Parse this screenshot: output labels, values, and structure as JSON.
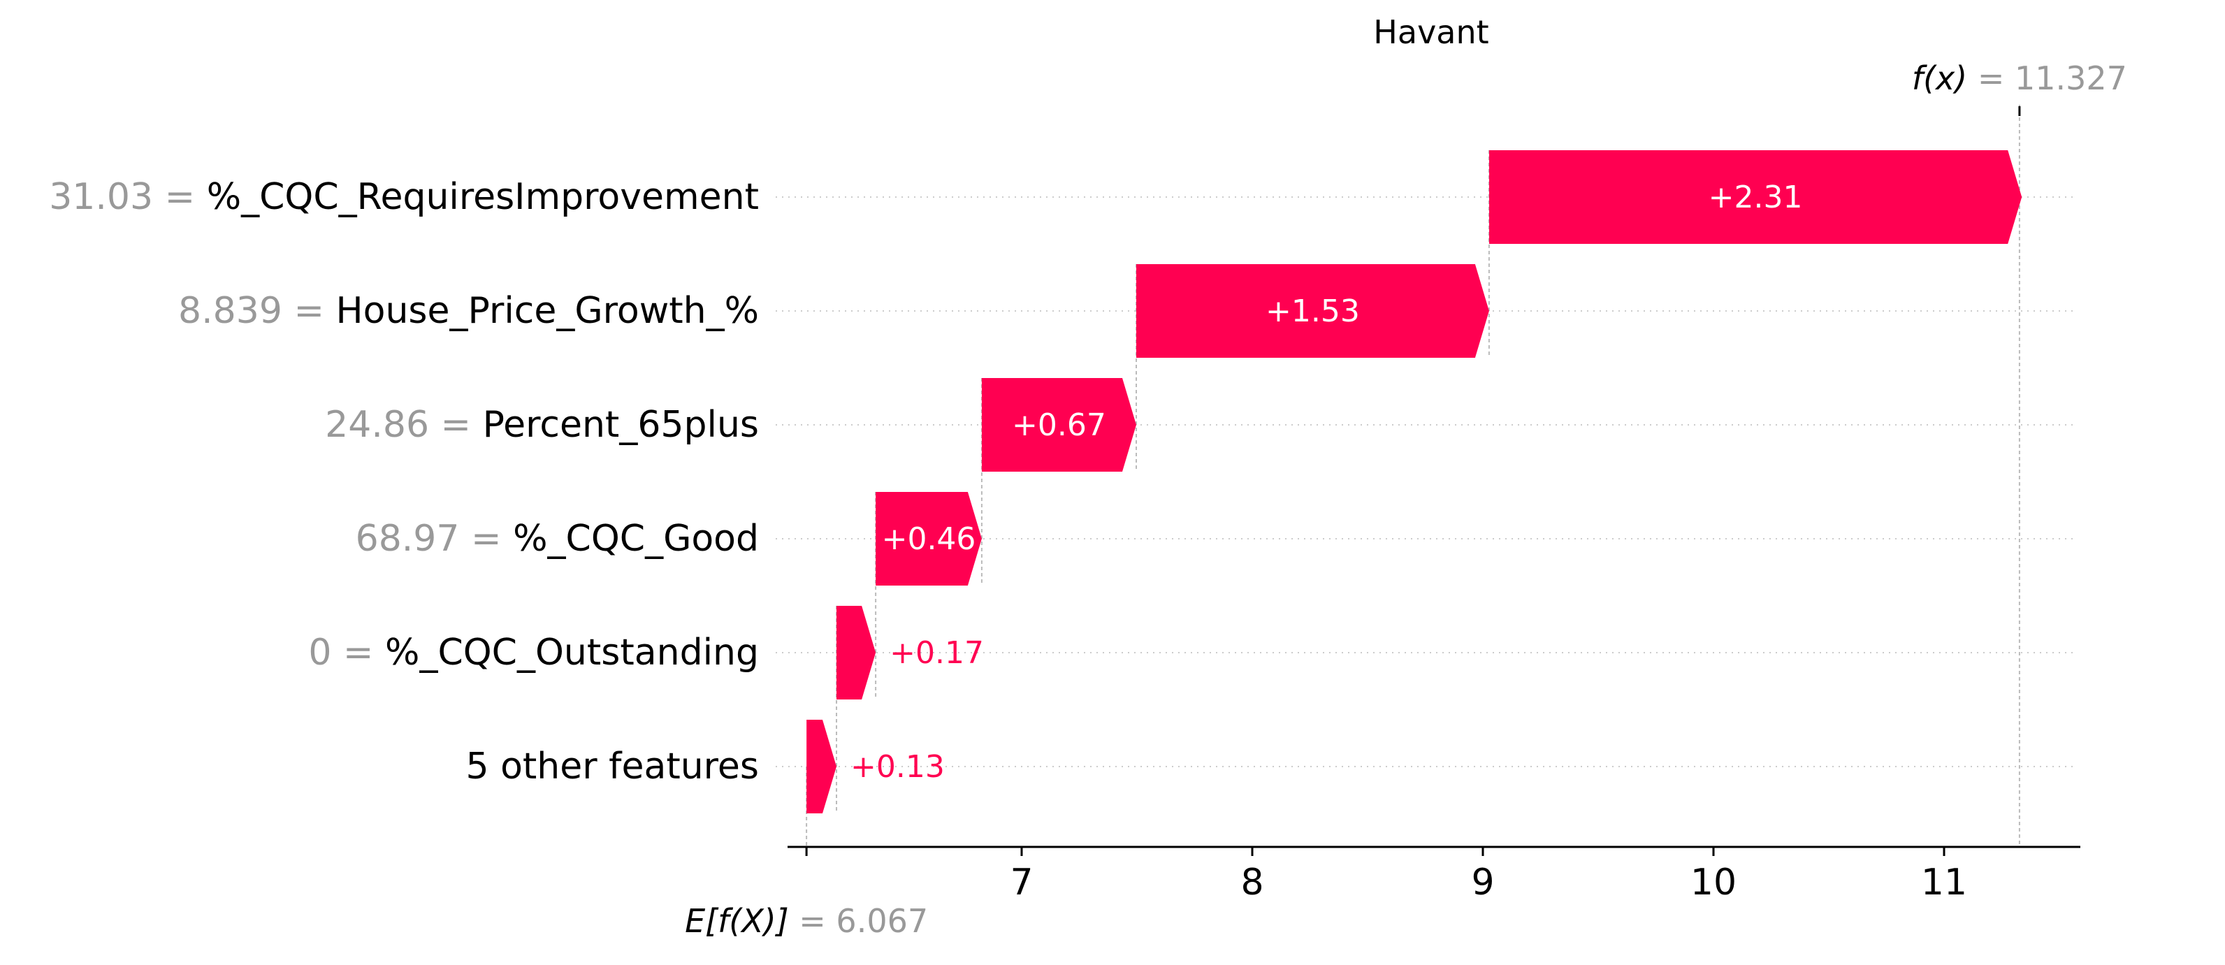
{
  "colors": {
    "positive": "#ff0051",
    "grid": "#d6d6d6",
    "muted_text": "#999999",
    "text": "#000000",
    "bar_label_inside": "#ffffff"
  },
  "chart_data": {
    "type": "waterfall",
    "title": "Havant",
    "base_value": 6.067,
    "base_value_label": "E[f(X)]",
    "base_value_text": "= 6.067",
    "output_value": 11.327,
    "output_value_label": "f(x)",
    "output_value_text": "= 11.327",
    "xlim": [
      6.0,
      11.67
    ],
    "x_ticks": [
      7,
      8,
      9,
      10,
      11
    ],
    "grid": "horizontal dotted",
    "features": [
      {
        "value_text": "31.03 =",
        "name": "%_CQC_RequiresImprovement",
        "contribution": 2.31,
        "label": "+2.31"
      },
      {
        "value_text": "8.839 =",
        "name": "House_Price_Growth_%",
        "contribution": 1.53,
        "label": "+1.53"
      },
      {
        "value_text": "24.86 =",
        "name": "Percent_65plus",
        "contribution": 0.67,
        "label": "+0.67"
      },
      {
        "value_text": "68.97 =",
        "name": "%_CQC_Good",
        "contribution": 0.46,
        "label": "+0.46"
      },
      {
        "value_text": "0 =",
        "name": "%_CQC_Outstanding",
        "contribution": 0.17,
        "label": "+0.17"
      },
      {
        "value_text": "",
        "name": "5 other features",
        "contribution": 0.13,
        "label": "+0.13"
      }
    ]
  }
}
